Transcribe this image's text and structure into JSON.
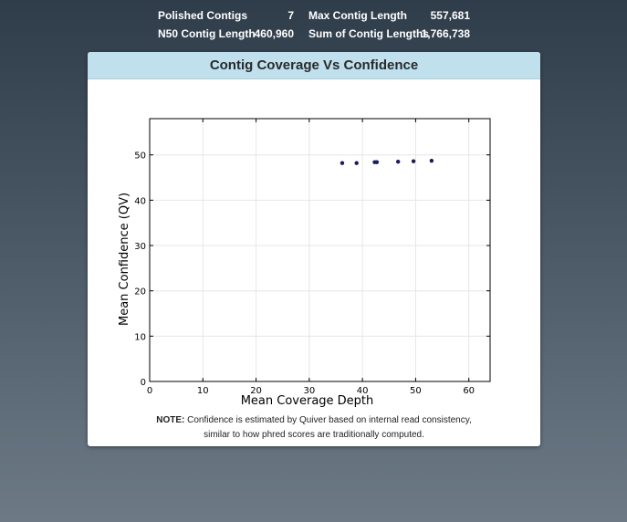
{
  "stats": {
    "rows": [
      [
        {
          "label": "Polished Contigs",
          "value": "7"
        },
        {
          "label": "Max Contig Length",
          "value": "557,681"
        }
      ],
      [
        {
          "label": "N50 Contig Length",
          "value": "460,960"
        },
        {
          "label": "Sum of Contig Lengths",
          "value": "1,766,738"
        }
      ]
    ]
  },
  "panel": {
    "title": "Contig Coverage Vs Confidence"
  },
  "note": {
    "prefix": "NOTE:",
    "line1": " Confidence is estimated by Quiver based on internal read consistency,",
    "line2": "similar to how phred scores are traditionally computed."
  },
  "colors": {
    "point": "#1a1a5c",
    "header_bg": "#bfe0ec",
    "grid": "#e6e6e6"
  },
  "chart_data": {
    "type": "scatter",
    "title": "",
    "xlabel": "Mean Coverage Depth",
    "ylabel": "Mean Confidence (QV)",
    "xlim": [
      0,
      64
    ],
    "ylim": [
      0,
      58
    ],
    "xticks": [
      0,
      10,
      20,
      30,
      40,
      50,
      60
    ],
    "yticks": [
      0,
      10,
      20,
      30,
      40,
      50
    ],
    "grid": true,
    "series": [
      {
        "points": [
          {
            "x": 36.2,
            "y": 48.2
          },
          {
            "x": 38.9,
            "y": 48.2
          },
          {
            "x": 42.3,
            "y": 48.4
          },
          {
            "x": 42.7,
            "y": 48.4
          },
          {
            "x": 46.7,
            "y": 48.5
          },
          {
            "x": 49.6,
            "y": 48.6
          },
          {
            "x": 53.0,
            "y": 48.7
          }
        ]
      }
    ]
  }
}
